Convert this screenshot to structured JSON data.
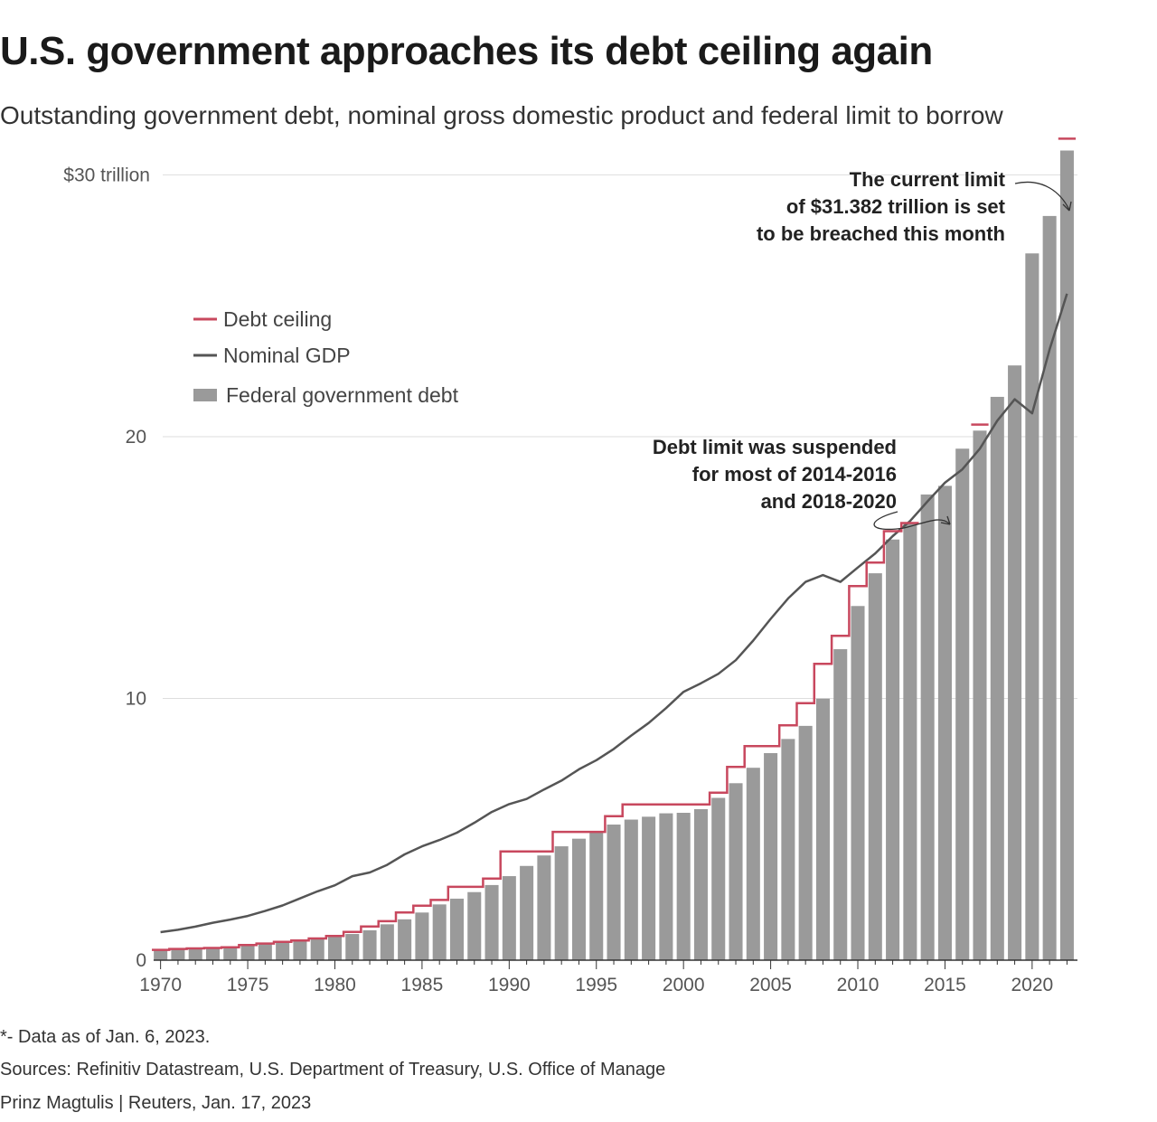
{
  "title": "U.S. government approaches its debt ceiling again",
  "subtitle": "Outstanding government debt, nominal gross domestic product and federal limit to borrow",
  "colors": {
    "ceiling": "#c8485e",
    "gdp": "#555555",
    "debt": "#9a9a9a",
    "grid": "#dddddd",
    "axis": "#333333",
    "tick_text": "#555555"
  },
  "chart_data": {
    "type": "bar",
    "x": [
      1970,
      1971,
      1972,
      1973,
      1974,
      1975,
      1976,
      1977,
      1978,
      1979,
      1980,
      1981,
      1982,
      1983,
      1984,
      1985,
      1986,
      1987,
      1988,
      1989,
      1990,
      1991,
      1992,
      1993,
      1994,
      1995,
      1996,
      1997,
      1998,
      1999,
      2000,
      2001,
      2002,
      2003,
      2004,
      2005,
      2006,
      2007,
      2008,
      2009,
      2010,
      2011,
      2012,
      2013,
      2014,
      2015,
      2016,
      2017,
      2018,
      2019,
      2020,
      2021,
      2022
    ],
    "series": [
      {
        "name": "Federal government debt",
        "type": "bar",
        "values": [
          0.37,
          0.41,
          0.44,
          0.47,
          0.48,
          0.54,
          0.63,
          0.71,
          0.78,
          0.83,
          0.91,
          1.0,
          1.14,
          1.37,
          1.56,
          1.82,
          2.13,
          2.35,
          2.6,
          2.87,
          3.21,
          3.6,
          4.0,
          4.35,
          4.64,
          4.92,
          5.18,
          5.37,
          5.48,
          5.61,
          5.63,
          5.77,
          6.2,
          6.76,
          7.35,
          7.91,
          8.45,
          8.95,
          9.99,
          11.88,
          13.53,
          14.78,
          16.07,
          16.72,
          17.79,
          18.12,
          19.54,
          20.23,
          21.52,
          22.72,
          27.0,
          28.43,
          30.93
        ]
      },
      {
        "name": "Nominal GDP",
        "type": "line",
        "values": [
          1.07,
          1.16,
          1.28,
          1.43,
          1.55,
          1.69,
          1.88,
          2.09,
          2.36,
          2.63,
          2.86,
          3.21,
          3.35,
          3.64,
          4.04,
          4.35,
          4.59,
          4.87,
          5.25,
          5.66,
          5.96,
          6.16,
          6.52,
          6.86,
          7.29,
          7.64,
          8.07,
          8.58,
          9.06,
          9.63,
          10.25,
          10.58,
          10.94,
          11.46,
          12.21,
          13.04,
          13.82,
          14.45,
          14.71,
          14.45,
          15.0,
          15.54,
          16.2,
          16.78,
          17.53,
          18.24,
          18.75,
          19.54,
          20.61,
          21.43,
          20.89,
          23.32,
          25.46
        ]
      },
      {
        "name": "Debt ceiling",
        "type": "step",
        "values": [
          0.395,
          0.43,
          0.45,
          0.465,
          0.495,
          0.577,
          0.636,
          0.7,
          0.752,
          0.83,
          0.925,
          1.08,
          1.29,
          1.49,
          1.82,
          2.08,
          2.3,
          2.8,
          2.8,
          3.12,
          4.15,
          4.15,
          4.15,
          4.9,
          4.9,
          4.9,
          5.5,
          5.95,
          5.95,
          5.95,
          5.95,
          5.95,
          6.4,
          7.38,
          8.18,
          8.18,
          8.97,
          9.82,
          11.32,
          12.39,
          14.29,
          15.19,
          16.39,
          16.7,
          null,
          null,
          null,
          20.46,
          null,
          null,
          null,
          null,
          31.382
        ]
      }
    ],
    "xlim": [
      1969.5,
      2022.6
    ],
    "ylim": [
      0,
      31.5
    ],
    "yticks": [
      0,
      10,
      20,
      30
    ],
    "ytick_labels": [
      "0",
      "10",
      "20",
      "$30 trillion"
    ],
    "xticks": [
      1970,
      1975,
      1980,
      1985,
      1990,
      1995,
      2000,
      2005,
      2010,
      2015,
      2020
    ],
    "grid": true,
    "legend": {
      "position": "top-left",
      "entries": [
        {
          "label": "Debt ceiling",
          "marker": "line",
          "key": "ceiling"
        },
        {
          "label": "Nominal GDP",
          "marker": "line",
          "key": "gdp"
        },
        {
          "label": "Federal government debt",
          "marker": "bar",
          "key": "debt"
        }
      ]
    },
    "annotations": [
      {
        "id": "current-limit",
        "lines": [
          "The current limit",
          "of $31.382 trillion is set",
          "to be breached this month"
        ],
        "target_year": 2022,
        "target_value": 31.382
      },
      {
        "id": "suspended",
        "lines": [
          "Debt limit was suspended",
          "for most of 2014-2016",
          "and 2018-2020"
        ],
        "target_year": 2015,
        "target_value": 18.1
      }
    ]
  },
  "footnote": "*- Data as of Jan. 6, 2023.",
  "sources": "Sources: Refinitiv Datastream, U.S. Department of Treasury, U.S. Office of Manage",
  "credit": "Prinz Magtulis  |  Reuters, Jan. 17, 2023"
}
